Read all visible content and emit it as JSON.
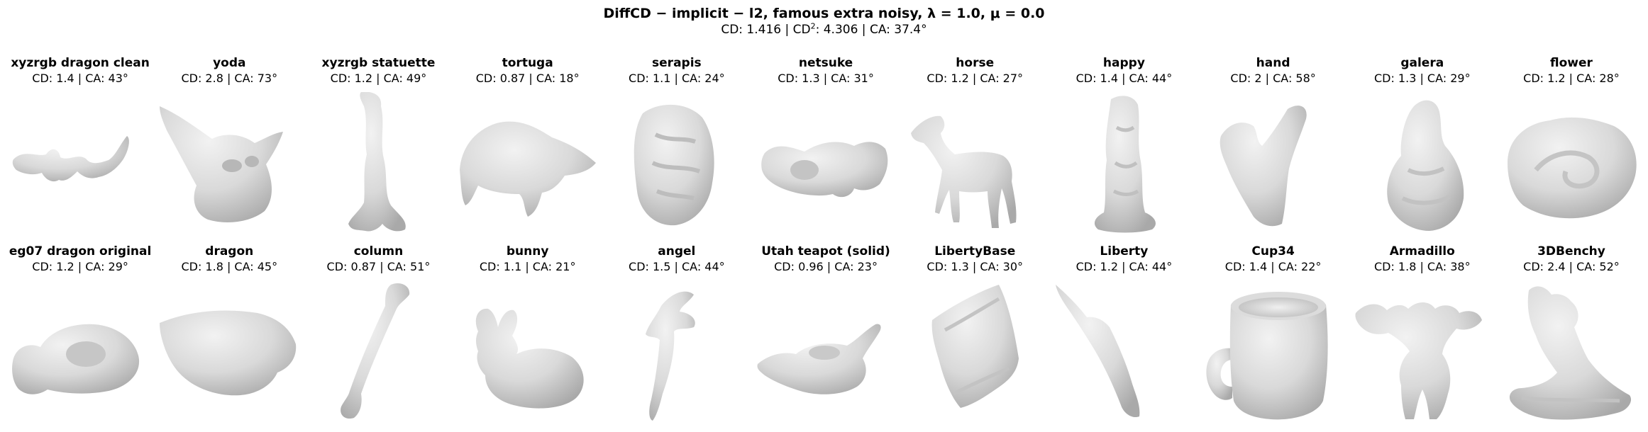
{
  "header": {
    "title": "DiffCD − implicit − l2,  famous extra noisy,  λ  =  1.0,  μ  =  0.0",
    "subtitle_prefix": "CD: 1.416 | CD",
    "subtitle_sup": "2",
    "subtitle_suffix": ": 4.306 | CA: 37.4°"
  },
  "panels": [
    {
      "name": "xyzrgb dragon clean",
      "metrics": "CD: 1.4 | CA: 43°"
    },
    {
      "name": "yoda",
      "metrics": "CD: 2.8 | CA: 73°"
    },
    {
      "name": "xyzrgb statuette",
      "metrics": "CD: 1.2 | CA: 49°"
    },
    {
      "name": "tortuga",
      "metrics": "CD: 0.87 | CA: 18°"
    },
    {
      "name": "serapis",
      "metrics": "CD: 1.1 | CA: 24°"
    },
    {
      "name": "netsuke",
      "metrics": "CD: 1.3 | CA: 31°"
    },
    {
      "name": "horse",
      "metrics": "CD: 1.2 | CA: 27°"
    },
    {
      "name": "happy",
      "metrics": "CD: 1.4 | CA: 44°"
    },
    {
      "name": "hand",
      "metrics": "CD: 2 | CA: 58°"
    },
    {
      "name": "galera",
      "metrics": "CD: 1.3 | CA: 29°"
    },
    {
      "name": "flower",
      "metrics": "CD: 1.2 | CA: 28°"
    },
    {
      "name": "eg07 dragon original",
      "metrics": "CD: 1.2 | CA: 29°"
    },
    {
      "name": "dragon",
      "metrics": "CD: 1.8 | CA: 45°"
    },
    {
      "name": "column",
      "metrics": "CD: 0.87 | CA: 51°"
    },
    {
      "name": "bunny",
      "metrics": "CD: 1.1 | CA: 21°"
    },
    {
      "name": "angel",
      "metrics": "CD: 1.5 | CA: 44°"
    },
    {
      "name": "Utah teapot (solid)",
      "metrics": "CD: 0.96 | CA: 23°"
    },
    {
      "name": "LibertyBase",
      "metrics": "CD: 1.3 | CA: 30°"
    },
    {
      "name": "Liberty",
      "metrics": "CD: 1.2 | CA: 44°"
    },
    {
      "name": "Cup34",
      "metrics": "CD: 1.4 | CA: 22°"
    },
    {
      "name": "Armadillo",
      "metrics": "CD: 1.8 | CA: 38°"
    },
    {
      "name": "3DBenchy",
      "metrics": "CD: 2.4 | CA: 52°"
    }
  ]
}
